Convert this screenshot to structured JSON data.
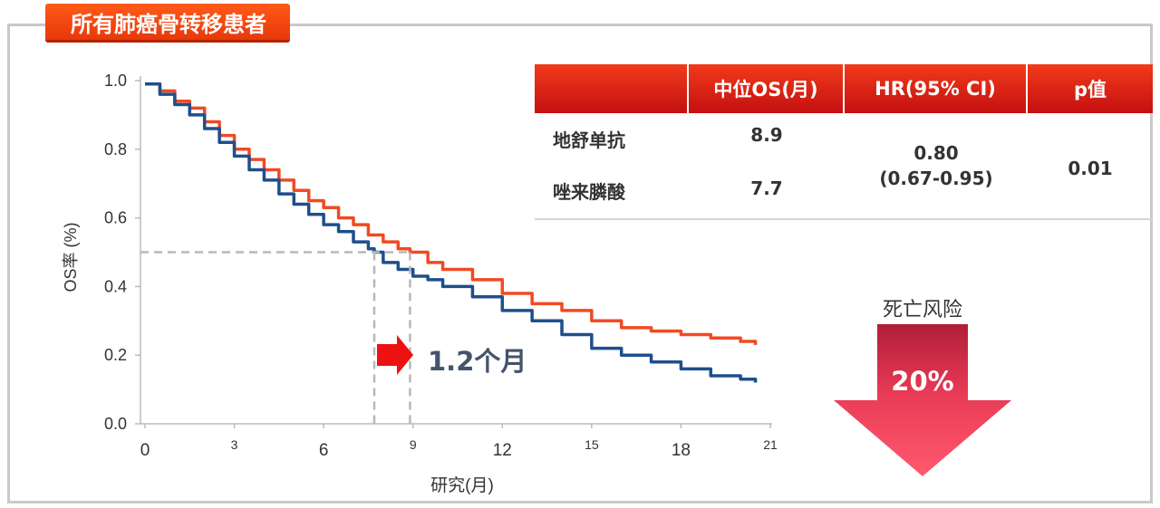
{
  "title": "所有肺癌骨转移患者",
  "colors": {
    "accent": "#e8380a",
    "drug_a": "#f04a24",
    "drug_b": "#1e4f8c",
    "risk_arrow": "#e83a55"
  },
  "table": {
    "headers": [
      "",
      "中位OS(月)",
      "HR(95% CI)",
      "p值"
    ],
    "rows": [
      {
        "name": "地舒单抗",
        "median_os": "8.9"
      },
      {
        "name": "唑来膦酸",
        "median_os": "7.7"
      }
    ],
    "hr": "0.80",
    "ci": "(0.67-0.95)",
    "p": "0.01"
  },
  "risk": {
    "label": "死亡风险",
    "value": "20%"
  },
  "gap": {
    "label": "1.2个月"
  },
  "chart_data": {
    "type": "line",
    "ylabel": "OS率 (%)",
    "xlabel": "研究(月)",
    "xlim": [
      0,
      21
    ],
    "ylim": [
      0,
      1.0
    ],
    "xticks": [
      0,
      3,
      6,
      9,
      12,
      15,
      18,
      21
    ],
    "yticks": [
      "0.0",
      "0.2",
      "0.4",
      "0.6",
      "0.8",
      "1.0"
    ],
    "median_line": {
      "y": 0.5,
      "x_values": [
        7.7,
        8.9
      ]
    },
    "series": [
      {
        "name": "地舒单抗",
        "color": "#f04a24",
        "x": [
          0,
          0.5,
          1.0,
          1.5,
          2.0,
          2.5,
          3.0,
          3.5,
          4.0,
          4.5,
          5.0,
          5.5,
          6.0,
          6.5,
          7.0,
          7.5,
          8.0,
          8.5,
          8.9,
          9.5,
          10,
          11,
          12,
          13,
          14,
          15,
          16,
          17,
          18,
          19,
          20,
          20.5
        ],
        "y": [
          0.99,
          0.97,
          0.94,
          0.92,
          0.88,
          0.84,
          0.8,
          0.77,
          0.74,
          0.71,
          0.68,
          0.65,
          0.63,
          0.6,
          0.58,
          0.55,
          0.53,
          0.51,
          0.5,
          0.47,
          0.45,
          0.42,
          0.38,
          0.35,
          0.33,
          0.3,
          0.28,
          0.27,
          0.26,
          0.25,
          0.24,
          0.23
        ]
      },
      {
        "name": "唑来膦酸",
        "color": "#1e4f8c",
        "x": [
          0,
          0.5,
          1.0,
          1.5,
          2.0,
          2.5,
          3.0,
          3.5,
          4.0,
          4.5,
          5.0,
          5.5,
          6.0,
          6.5,
          7.0,
          7.5,
          7.7,
          8.0,
          8.5,
          9.0,
          9.5,
          10,
          11,
          12,
          13,
          14,
          15,
          16,
          17,
          18,
          19,
          20,
          20.5
        ],
        "y": [
          0.99,
          0.96,
          0.93,
          0.9,
          0.86,
          0.82,
          0.78,
          0.74,
          0.71,
          0.67,
          0.64,
          0.61,
          0.58,
          0.56,
          0.53,
          0.51,
          0.5,
          0.47,
          0.45,
          0.43,
          0.42,
          0.4,
          0.37,
          0.33,
          0.3,
          0.26,
          0.22,
          0.2,
          0.18,
          0.16,
          0.14,
          0.13,
          0.12
        ]
      }
    ]
  }
}
